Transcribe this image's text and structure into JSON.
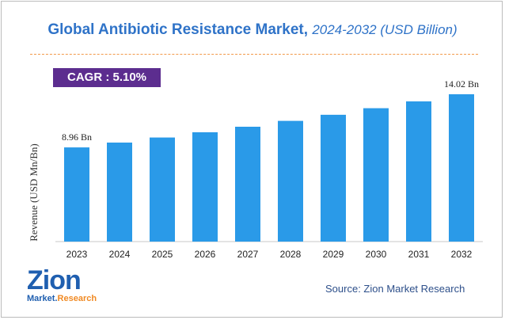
{
  "header": {
    "title": "Global Antibiotic Resistance Market,",
    "subtitle": "2024-2032 (USD Billion)"
  },
  "cagr_label": "CAGR : 5.10%",
  "source": "Source: Zion Market Research",
  "logo": {
    "word": "Zion",
    "tagline_a": "Market.",
    "tagline_b": "Research"
  },
  "colors": {
    "bar": "#2a9ae8",
    "title": "#2f73c8",
    "cagr_bg": "#5c2d8f",
    "divider": "#f29a4a"
  },
  "chart_data": {
    "type": "bar",
    "categories": [
      "2023",
      "2024",
      "2025",
      "2026",
      "2027",
      "2028",
      "2029",
      "2030",
      "2031",
      "2032"
    ],
    "values": [
      8.96,
      9.42,
      9.9,
      10.4,
      10.93,
      11.49,
      12.07,
      12.69,
      13.34,
      14.02
    ],
    "data_labels": [
      {
        "index": 0,
        "text": "8.96 Bn"
      },
      {
        "index": 9,
        "text": "14.02 Bn"
      }
    ],
    "ylabel": "Revenue (USD Mn/Bn)",
    "xlabel": "",
    "ylim": [
      0,
      15.3
    ],
    "grid": false,
    "legend": "none"
  }
}
